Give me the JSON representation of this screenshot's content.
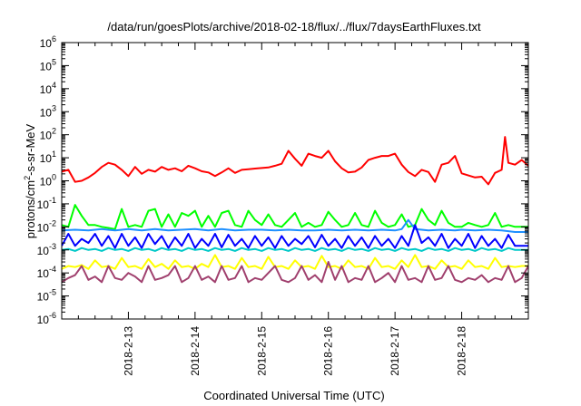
{
  "chart_data": {
    "type": "line",
    "title": "/data/run/goesPlots/archive/2018-02-18/flux/../flux/7daysEarthFluxes.txt",
    "xlabel": "Coordinated Universal Time (UTC)",
    "ylabel": "protons/cm²-s-sr-MeV",
    "ylabel_parts": {
      "pre": "protons/cm",
      "sup": "2",
      "post": "-s-sr-MeV"
    },
    "yscale": "log",
    "ylim": [
      -6,
      6
    ],
    "y_tick_labels": [
      {
        "exp": -6,
        "base": "10",
        "sup": "-6"
      },
      {
        "exp": -5,
        "base": "10",
        "sup": "-5"
      },
      {
        "exp": -4,
        "base": "10",
        "sup": "-4"
      },
      {
        "exp": -3,
        "base": "10",
        "sup": "-3"
      },
      {
        "exp": -2,
        "base": "10",
        "sup": "-2"
      },
      {
        "exp": -1,
        "base": "10",
        "sup": "-1"
      },
      {
        "exp": 0,
        "base": "10",
        "sup": "0"
      },
      {
        "exp": 1,
        "base": "10",
        "sup": "1"
      },
      {
        "exp": 2,
        "base": "10",
        "sup": "2"
      },
      {
        "exp": 3,
        "base": "10",
        "sup": "3"
      },
      {
        "exp": 4,
        "base": "10",
        "sup": "4"
      },
      {
        "exp": 5,
        "base": "10",
        "sup": "5"
      },
      {
        "exp": 6,
        "base": "10",
        "sup": "6"
      }
    ],
    "xlim": [
      12.0,
      19.0
    ],
    "x_tick_labels": [
      {
        "day": 13,
        "label": "2018-2-13"
      },
      {
        "day": 14,
        "label": "2018-2-14"
      },
      {
        "day": 15,
        "label": "2018-2-15"
      },
      {
        "day": 16,
        "label": "2018-2-16"
      },
      {
        "day": 17,
        "label": "2018-2-17"
      },
      {
        "day": 18,
        "label": "2018-2-18"
      }
    ],
    "grid": false,
    "series": [
      {
        "color": "#ff0000",
        "x": [
          12.0,
          12.1,
          12.2,
          12.3,
          12.4,
          12.5,
          12.6,
          12.7,
          12.8,
          12.9,
          13.0,
          13.1,
          13.2,
          13.3,
          13.4,
          13.5,
          13.6,
          13.7,
          13.8,
          13.9,
          14.0,
          14.1,
          14.2,
          14.3,
          14.4,
          14.5,
          14.6,
          14.7,
          14.8,
          14.9,
          15.0,
          15.1,
          15.2,
          15.3,
          15.4,
          15.5,
          15.6,
          15.7,
          15.8,
          15.9,
          16.0,
          16.1,
          16.2,
          16.3,
          16.4,
          16.5,
          16.6,
          16.7,
          16.8,
          16.9,
          17.0,
          17.1,
          17.2,
          17.3,
          17.4,
          17.5,
          17.6,
          17.7,
          17.8,
          17.9,
          18.0,
          18.1,
          18.2,
          18.3,
          18.4,
          18.5,
          18.6,
          18.65,
          18.7,
          18.8,
          18.9,
          19.0
        ],
        "values": [
          2.5,
          3,
          0.9,
          1.0,
          1.4,
          2.2,
          4,
          6,
          5,
          3,
          1.6,
          4,
          2,
          3,
          2.5,
          4,
          3,
          3.5,
          2.6,
          4.5,
          3.5,
          2.6,
          2.3,
          1.6,
          2.3,
          3.5,
          2.2,
          3,
          3.2,
          3.4,
          3.6,
          3.8,
          4.5,
          5.5,
          20,
          9,
          4.5,
          15,
          12,
          10,
          20,
          7,
          3.5,
          2.3,
          2.5,
          3.8,
          8,
          10,
          12,
          12,
          15,
          5,
          2.4,
          1.6,
          3,
          2.4,
          0.9,
          5,
          6,
          12,
          2.1,
          1.7,
          1.4,
          1.5,
          0.7,
          2.2,
          3,
          80,
          6,
          5,
          8,
          4.5
        ]
      },
      {
        "color": "#00ff00",
        "x": [
          12.0,
          12.1,
          12.2,
          12.3,
          12.4,
          12.5,
          12.6,
          12.7,
          12.8,
          12.9,
          13.0,
          13.1,
          13.2,
          13.3,
          13.4,
          13.5,
          13.6,
          13.7,
          13.8,
          13.9,
          14.0,
          14.1,
          14.2,
          14.3,
          14.4,
          14.5,
          14.6,
          14.7,
          14.8,
          14.9,
          15.0,
          15.1,
          15.2,
          15.3,
          15.4,
          15.5,
          15.6,
          15.7,
          15.8,
          15.9,
          16.0,
          16.1,
          16.2,
          16.3,
          16.4,
          16.5,
          16.6,
          16.7,
          16.8,
          16.9,
          17.0,
          17.1,
          17.2,
          17.3,
          17.4,
          17.5,
          17.6,
          17.7,
          17.8,
          17.9,
          18.0,
          18.1,
          18.2,
          18.3,
          18.4,
          18.5,
          18.6,
          18.7,
          18.8,
          18.9,
          19.0
        ],
        "values": [
          0.012,
          0.01,
          0.09,
          0.03,
          0.012,
          0.012,
          0.01,
          0.009,
          0.008,
          0.06,
          0.01,
          0.012,
          0.01,
          0.05,
          0.06,
          0.01,
          0.035,
          0.01,
          0.04,
          0.03,
          0.05,
          0.01,
          0.03,
          0.01,
          0.04,
          0.05,
          0.012,
          0.01,
          0.05,
          0.02,
          0.012,
          0.035,
          0.012,
          0.01,
          0.02,
          0.04,
          0.01,
          0.015,
          0.01,
          0.012,
          0.045,
          0.02,
          0.01,
          0.012,
          0.04,
          0.012,
          0.01,
          0.05,
          0.015,
          0.01,
          0.012,
          0.035,
          0.01,
          0.012,
          0.06,
          0.02,
          0.012,
          0.05,
          0.015,
          0.01,
          0.01,
          0.015,
          0.012,
          0.01,
          0.012,
          0.04,
          0.01,
          0.012,
          0.01,
          0.01,
          0.01
        ]
      },
      {
        "color": "#1e90ff",
        "x": [
          12.0,
          12.2,
          12.4,
          12.6,
          12.8,
          13.0,
          13.2,
          13.4,
          13.6,
          13.8,
          14.0,
          14.2,
          14.4,
          14.6,
          14.8,
          15.0,
          15.2,
          15.4,
          15.6,
          15.8,
          16.0,
          16.2,
          16.4,
          16.6,
          16.8,
          17.0,
          17.1,
          17.2,
          17.3,
          17.5,
          17.7,
          17.9,
          18.0,
          18.2,
          18.4,
          18.6,
          18.8,
          19.0
        ],
        "values": [
          0.007,
          0.0075,
          0.007,
          0.008,
          0.007,
          0.008,
          0.007,
          0.008,
          0.007,
          0.0075,
          0.008,
          0.007,
          0.008,
          0.007,
          0.0075,
          0.0075,
          0.007,
          0.0075,
          0.007,
          0.007,
          0.0075,
          0.007,
          0.0075,
          0.007,
          0.0075,
          0.007,
          0.008,
          0.02,
          0.008,
          0.007,
          0.0075,
          0.007,
          0.0075,
          0.007,
          0.0075,
          0.007,
          0.006,
          0.006
        ]
      },
      {
        "color": "#0000ff",
        "x": [
          12.0,
          12.1,
          12.2,
          12.3,
          12.4,
          12.5,
          12.6,
          12.7,
          12.8,
          12.9,
          13.0,
          13.1,
          13.2,
          13.3,
          13.4,
          13.5,
          13.6,
          13.7,
          13.8,
          13.9,
          14.0,
          14.1,
          14.2,
          14.3,
          14.4,
          14.5,
          14.6,
          14.7,
          14.8,
          14.9,
          15.0,
          15.1,
          15.2,
          15.3,
          15.4,
          15.5,
          15.6,
          15.7,
          15.8,
          15.9,
          16.0,
          16.1,
          16.2,
          16.3,
          16.4,
          16.5,
          16.6,
          16.7,
          16.8,
          16.9,
          17.0,
          17.1,
          17.2,
          17.3,
          17.4,
          17.5,
          17.6,
          17.7,
          17.8,
          17.9,
          18.0,
          18.1,
          18.2,
          18.3,
          18.4,
          18.5,
          18.6,
          18.7,
          18.8,
          18.9,
          19.0
        ],
        "values": [
          0.0015,
          0.005,
          0.0015,
          0.003,
          0.002,
          0.005,
          0.0015,
          0.004,
          0.0012,
          0.005,
          0.0015,
          0.0035,
          0.0012,
          0.005,
          0.0018,
          0.004,
          0.0012,
          0.0035,
          0.0015,
          0.005,
          0.0012,
          0.003,
          0.0015,
          0.005,
          0.0013,
          0.0045,
          0.0015,
          0.003,
          0.0012,
          0.004,
          0.0015,
          0.0035,
          0.0012,
          0.004,
          0.0015,
          0.003,
          0.0018,
          0.004,
          0.0013,
          0.0045,
          0.0015,
          0.003,
          0.0012,
          0.004,
          0.0015,
          0.0035,
          0.0012,
          0.004,
          0.0015,
          0.003,
          0.0012,
          0.004,
          0.0015,
          0.012,
          0.002,
          0.0035,
          0.0015,
          0.005,
          0.0012,
          0.003,
          0.0015,
          0.005,
          0.0012,
          0.004,
          0.0015,
          0.003,
          0.0012,
          0.0045,
          0.0015,
          0.0015,
          0.0015
        ]
      },
      {
        "color": "#00c8c8",
        "x": [
          12.0,
          12.1,
          12.2,
          12.3,
          12.4,
          12.5,
          12.6,
          12.7,
          12.8,
          12.9,
          13.0,
          13.1,
          13.2,
          13.3,
          13.4,
          13.5,
          13.6,
          13.7,
          13.8,
          13.9,
          14.0,
          14.1,
          14.2,
          14.3,
          14.4,
          14.5,
          14.6,
          14.7,
          14.8,
          14.9,
          15.0,
          15.1,
          15.2,
          15.3,
          15.4,
          15.5,
          15.6,
          15.7,
          15.8,
          15.9,
          16.0,
          16.1,
          16.2,
          16.3,
          16.4,
          16.5,
          16.6,
          16.7,
          16.8,
          16.9,
          17.0,
          17.1,
          17.2,
          17.3,
          17.4,
          17.5,
          17.6,
          17.7,
          17.8,
          17.9,
          18.0,
          18.1,
          18.2,
          18.3,
          18.4,
          18.5,
          18.6,
          18.7,
          18.8,
          18.9,
          19.0
        ],
        "values": [
          0.001,
          0.0011,
          0.0009,
          0.0012,
          0.001,
          0.0011,
          0.0009,
          0.0012,
          0.001,
          0.0011,
          0.0009,
          0.0012,
          0.001,
          0.0011,
          0.0009,
          0.0012,
          0.001,
          0.0011,
          0.0009,
          0.0012,
          0.001,
          0.0011,
          0.0009,
          0.0012,
          0.001,
          0.0011,
          0.0009,
          0.0012,
          0.001,
          0.0011,
          0.0009,
          0.0012,
          0.001,
          0.0011,
          0.0009,
          0.0012,
          0.001,
          0.0011,
          0.0009,
          0.0012,
          0.001,
          0.0011,
          0.0009,
          0.0012,
          0.001,
          0.0011,
          0.0009,
          0.0012,
          0.001,
          0.0011,
          0.0009,
          0.0012,
          0.001,
          0.0011,
          0.0009,
          0.0012,
          0.001,
          0.0011,
          0.0009,
          0.0012,
          0.001,
          0.0011,
          0.0009,
          0.0012,
          0.001,
          0.0011,
          0.0009,
          0.0012,
          0.001,
          0.001,
          0.001
        ]
      },
      {
        "color": "#ffff00",
        "x": [
          12.0,
          12.1,
          12.2,
          12.3,
          12.4,
          12.5,
          12.6,
          12.7,
          12.8,
          12.9,
          13.0,
          13.1,
          13.2,
          13.3,
          13.4,
          13.5,
          13.6,
          13.7,
          13.8,
          13.9,
          14.0,
          14.1,
          14.2,
          14.3,
          14.4,
          14.5,
          14.6,
          14.7,
          14.8,
          14.9,
          15.0,
          15.1,
          15.2,
          15.3,
          15.4,
          15.5,
          15.6,
          15.7,
          15.8,
          15.9,
          16.0,
          16.1,
          16.2,
          16.3,
          16.4,
          16.5,
          16.6,
          16.7,
          16.8,
          16.9,
          17.0,
          17.1,
          17.2,
          17.3,
          17.4,
          17.5,
          17.6,
          17.7,
          17.8,
          17.9,
          18.0,
          18.1,
          18.2,
          18.3,
          18.4,
          18.5,
          18.6,
          18.7,
          18.8,
          18.9,
          19.0
        ],
        "values": [
          0.00015,
          0.0002,
          0.00018,
          0.00022,
          0.00015,
          0.00035,
          0.00018,
          0.0002,
          0.00015,
          0.00045,
          0.00018,
          0.0002,
          0.00015,
          0.0004,
          0.00018,
          0.00025,
          0.00015,
          0.00035,
          0.00018,
          0.0002,
          0.00015,
          0.00025,
          0.00018,
          0.0006,
          0.00018,
          0.0002,
          0.00015,
          0.00045,
          0.00018,
          0.0002,
          0.00015,
          0.0005,
          0.00018,
          0.0002,
          0.00015,
          0.00035,
          0.00018,
          0.0002,
          0.00015,
          0.00055,
          0.00018,
          0.0002,
          0.00015,
          0.00035,
          0.00018,
          0.0002,
          0.00015,
          0.00045,
          0.00018,
          0.0002,
          0.00015,
          0.00035,
          0.00018,
          0.0006,
          0.00018,
          0.0002,
          0.00015,
          0.00035,
          0.00018,
          0.0002,
          0.00015,
          0.00035,
          0.00018,
          0.0002,
          0.00015,
          0.00045,
          0.00018,
          0.0002,
          0.00018,
          0.0002,
          0.0002
        ]
      },
      {
        "color": "#a0406e",
        "x": [
          12.0,
          12.1,
          12.2,
          12.3,
          12.4,
          12.5,
          12.6,
          12.7,
          12.8,
          12.9,
          13.0,
          13.1,
          13.2,
          13.3,
          13.4,
          13.5,
          13.6,
          13.7,
          13.8,
          13.9,
          14.0,
          14.1,
          14.2,
          14.3,
          14.4,
          14.5,
          14.6,
          14.7,
          14.8,
          14.9,
          15.0,
          15.1,
          15.2,
          15.3,
          15.4,
          15.5,
          15.6,
          15.7,
          15.8,
          15.9,
          16.0,
          16.1,
          16.2,
          16.3,
          16.4,
          16.5,
          16.6,
          16.7,
          16.8,
          16.9,
          17.0,
          17.1,
          17.2,
          17.3,
          17.4,
          17.5,
          17.6,
          17.7,
          17.8,
          17.9,
          18.0,
          18.1,
          18.2,
          18.3,
          18.4,
          18.5,
          18.6,
          18.7,
          18.8,
          18.9,
          19.0
        ],
        "values": [
          4e-05,
          6e-05,
          8e-05,
          0.0002,
          5e-05,
          7e-05,
          4e-05,
          0.0002,
          6e-05,
          5e-05,
          0.0001,
          7e-05,
          4e-05,
          0.0002,
          5e-05,
          6e-05,
          8e-05,
          0.0002,
          4e-05,
          6e-05,
          0.0002,
          5e-05,
          7e-05,
          4e-05,
          0.0002,
          5e-05,
          6e-05,
          0.0002,
          4e-05,
          6e-05,
          5e-05,
          0.0001,
          0.0002,
          5e-05,
          4e-05,
          6e-05,
          0.0002,
          5e-05,
          8e-05,
          4e-05,
          0.0003,
          5e-05,
          0.0002,
          4e-05,
          6e-05,
          5e-05,
          0.0002,
          4e-05,
          6e-05,
          0.0001,
          4e-05,
          0.0002,
          5e-05,
          6e-05,
          4e-05,
          0.0002,
          5e-05,
          6e-05,
          0.0002,
          5e-05,
          4e-05,
          6e-05,
          5e-05,
          8e-05,
          4e-05,
          6e-05,
          5e-05,
          0.0002,
          4e-05,
          6e-05,
          0.0002
        ]
      }
    ]
  }
}
